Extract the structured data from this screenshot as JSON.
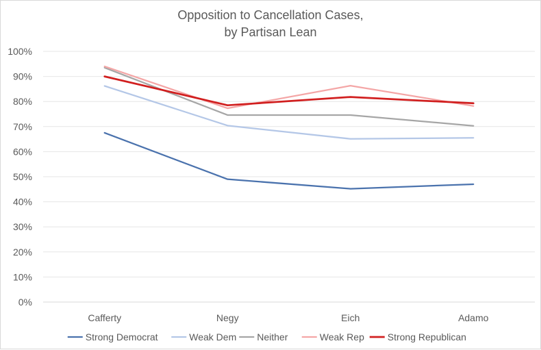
{
  "chart_data": {
    "type": "line",
    "title_lines": [
      "Opposition to Cancellation Cases,",
      "by Partisan Lean"
    ],
    "categories": [
      "Cafferty",
      "Negy",
      "Eich",
      "Adamo"
    ],
    "ylim": [
      0,
      100
    ],
    "ytick_values": [
      0,
      10,
      20,
      30,
      40,
      50,
      60,
      70,
      80,
      90,
      100
    ],
    "ytick_labels": [
      "0%",
      "10%",
      "20%",
      "30%",
      "40%",
      "50%",
      "60%",
      "70%",
      "80%",
      "90%",
      "100%"
    ],
    "grid": true,
    "legend_position": "bottom",
    "series": [
      {
        "name": "Strong Democrat",
        "color": "#4a72ad",
        "values": [
          67.5,
          49,
          45.2,
          47
        ]
      },
      {
        "name": "Weak Dem",
        "color": "#b4c7e7",
        "values": [
          86.2,
          70.4,
          65.1,
          65.5
        ]
      },
      {
        "name": "Neither",
        "color": "#a6a6a6",
        "values": [
          93.5,
          74.6,
          74.6,
          70.3
        ]
      },
      {
        "name": "Weak Rep",
        "color": "#f4a6a6",
        "values": [
          94,
          77.3,
          86.3,
          78.2
        ]
      },
      {
        "name": "Strong Republican",
        "color": "#d11f1f",
        "values": [
          90,
          78.5,
          81.8,
          79.3
        ]
      }
    ]
  }
}
